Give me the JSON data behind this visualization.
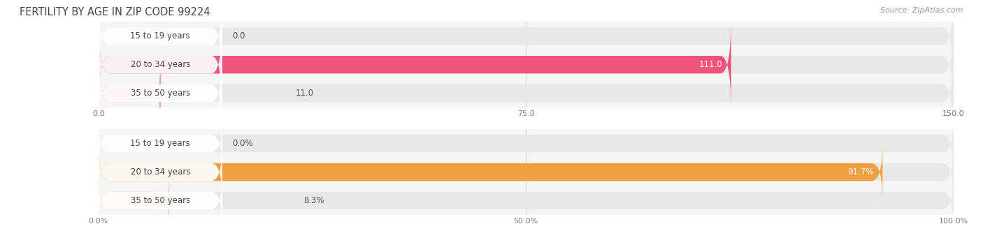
{
  "title": "FERTILITY BY AGE IN ZIP CODE 99224",
  "source": "Source: ZipAtlas.com",
  "top_chart": {
    "categories": [
      "15 to 19 years",
      "20 to 34 years",
      "35 to 50 years"
    ],
    "values": [
      0.0,
      111.0,
      11.0
    ],
    "xlim": [
      0,
      150
    ],
    "xticks": [
      0.0,
      75.0,
      150.0
    ],
    "xtick_labels": [
      "0.0",
      "75.0",
      "150.0"
    ],
    "bar_color_dark": "#f0527a",
    "bar_color_light": "#f4a0b8",
    "bar_bg_color": "#e8e8e8",
    "label_bg": "#ffffff"
  },
  "bottom_chart": {
    "categories": [
      "15 to 19 years",
      "20 to 34 years",
      "35 to 50 years"
    ],
    "values": [
      0.0,
      91.7,
      8.3
    ],
    "xlim": [
      0,
      100
    ],
    "xticks": [
      0.0,
      50.0,
      100.0
    ],
    "xtick_labels": [
      "0.0%",
      "50.0%",
      "100.0%"
    ],
    "bar_color_dark": "#f0a040",
    "bar_color_light": "#f5c890",
    "bar_bg_color": "#e8e8e8",
    "label_bg": "#ffffff"
  },
  "fig_bg": "#ffffff",
  "panel_bg": "#f5f5f5",
  "title_fontsize": 10.5,
  "label_fontsize": 8.5,
  "value_fontsize": 8.5,
  "tick_fontsize": 8,
  "source_fontsize": 8
}
